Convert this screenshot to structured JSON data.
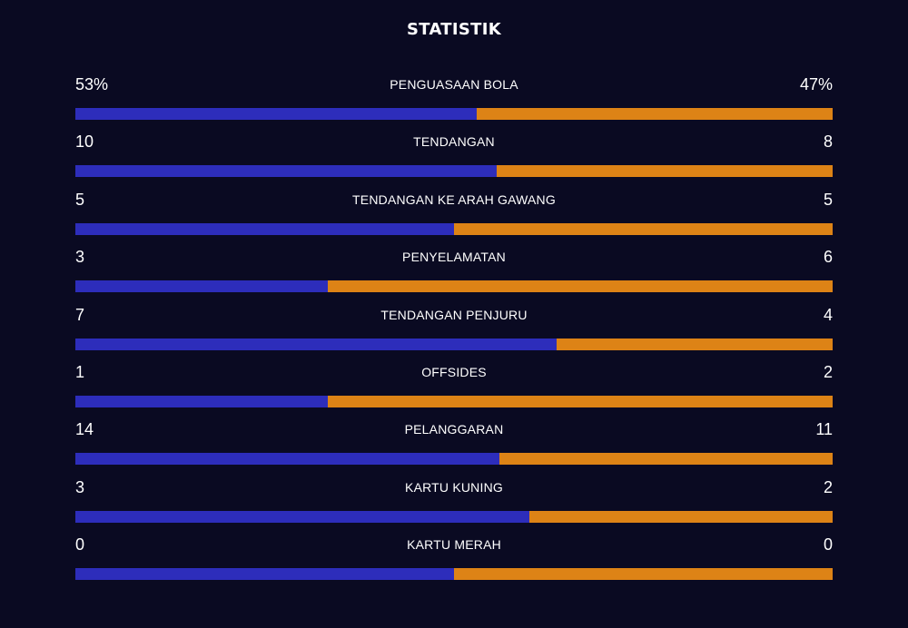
{
  "title": "STATISTIK",
  "colors": {
    "background": "#0a0a22",
    "home": "#2d2dbb",
    "away": "#dd8316"
  },
  "stats": [
    {
      "label": "PENGUASAAN BOLA",
      "home": "53%",
      "away": "47%",
      "home_share": 0.53
    },
    {
      "label": "TENDANGAN",
      "home": "10",
      "away": "8",
      "home_share": 0.556
    },
    {
      "label": "TENDANGAN KE ARAH GAWANG",
      "home": "5",
      "away": "5",
      "home_share": 0.5
    },
    {
      "label": "PENYELAMATAN",
      "home": "3",
      "away": "6",
      "home_share": 0.333
    },
    {
      "label": "TENDANGAN PENJURU",
      "home": "7",
      "away": "4",
      "home_share": 0.636
    },
    {
      "label": "OFFSIDES",
      "home": "1",
      "away": "2",
      "home_share": 0.333
    },
    {
      "label": "PELANGGARAN",
      "home": "14",
      "away": "11",
      "home_share": 0.56
    },
    {
      "label": "KARTU KUNING",
      "home": "3",
      "away": "2",
      "home_share": 0.6
    },
    {
      "label": "KARTU MERAH",
      "home": "0",
      "away": "0",
      "home_share": 0.5
    }
  ]
}
